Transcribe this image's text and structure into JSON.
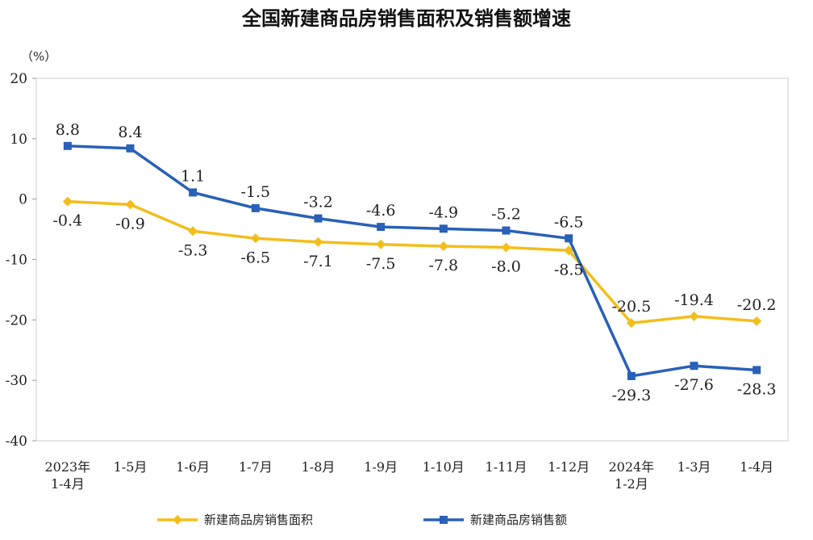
{
  "chart_data": {
    "type": "line",
    "title": "全国新建商品房销售面积及销售额增速",
    "ylabel": "（%）",
    "ylim": [
      -40,
      20
    ],
    "yticks": [
      "20",
      "10",
      "0",
      "-10",
      "-20",
      "-30",
      "-40"
    ],
    "categories": [
      [
        "2023年",
        "1-4月"
      ],
      [
        "1-5月"
      ],
      [
        "1-6月"
      ],
      [
        "1-7月"
      ],
      [
        "1-8月"
      ],
      [
        "1-9月"
      ],
      [
        "1-10月"
      ],
      [
        "1-11月"
      ],
      [
        "1-12月"
      ],
      [
        "2024年",
        "1-2月"
      ],
      [
        "1-3月"
      ],
      [
        "1-4月"
      ]
    ],
    "series": [
      {
        "name": "新建商品房销售面积",
        "color": "#F2BE1C",
        "values": [
          -0.4,
          -0.9,
          -5.3,
          -6.5,
          -7.1,
          -7.5,
          -7.8,
          -8.0,
          -8.5,
          -20.5,
          -19.4,
          -20.2
        ],
        "labels": [
          "-0.4",
          "-0.9",
          "-5.3",
          "-6.5",
          "-7.1",
          "-7.5",
          "-7.8",
          "-8.0",
          "-8.5",
          "-20.5",
          "-19.4",
          "-20.2"
        ],
        "label_position": [
          "below",
          "below",
          "below",
          "below",
          "below",
          "below",
          "below",
          "below",
          "below",
          "above",
          "above",
          "above"
        ]
      },
      {
        "name": "新建商品房销售额",
        "color": "#2960B8",
        "values": [
          8.8,
          8.4,
          1.1,
          -1.5,
          -3.2,
          -4.6,
          -4.9,
          -5.2,
          -6.5,
          -29.3,
          -27.6,
          -28.3
        ],
        "labels": [
          "8.8",
          "8.4",
          "1.1",
          "-1.5",
          "-3.2",
          "-4.6",
          "-4.9",
          "-5.2",
          "-6.5",
          "-29.3",
          "-27.6",
          "-28.3"
        ],
        "label_position": [
          "above",
          "above",
          "above",
          "above",
          "above",
          "above",
          "above",
          "above",
          "above",
          "below",
          "below",
          "below"
        ]
      }
    ],
    "grid": false,
    "legend_position": "bottom"
  }
}
